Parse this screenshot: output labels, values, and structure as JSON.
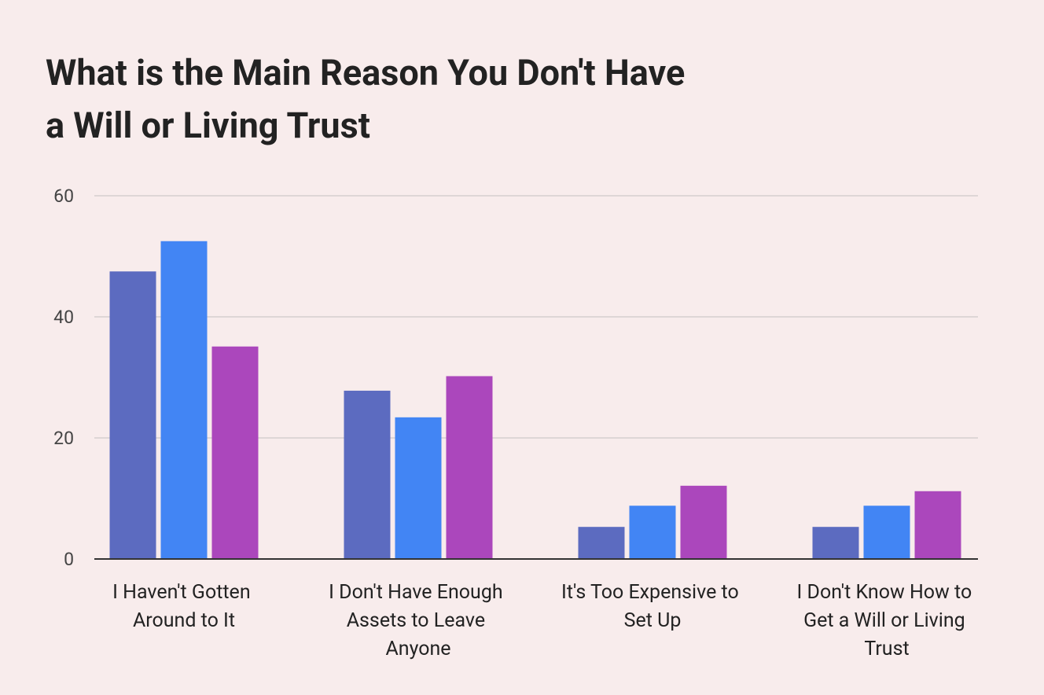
{
  "chart_data": {
    "type": "bar",
    "title": "What is the Main Reason You Don't Have a Will or Living Trust",
    "categories": [
      "I Haven't Gotten Around to It",
      "I Don't Have Enough Assets to Leave Anyone",
      "It's Too Expensive to Set Up",
      "I Don't Know How to Get a Will or Living Trust"
    ],
    "series": [
      {
        "color": "#5c6bc0",
        "values": [
          47.5,
          27.8,
          5.3,
          5.3
        ]
      },
      {
        "color": "#4285f4",
        "values": [
          52.5,
          23.4,
          8.8,
          8.8
        ]
      },
      {
        "color": "#ab47bc",
        "values": [
          35.1,
          30.2,
          12.1,
          11.2
        ]
      }
    ],
    "ylim": [
      0,
      60
    ],
    "yticks": [
      0,
      20,
      40,
      60
    ],
    "grid": true
  }
}
